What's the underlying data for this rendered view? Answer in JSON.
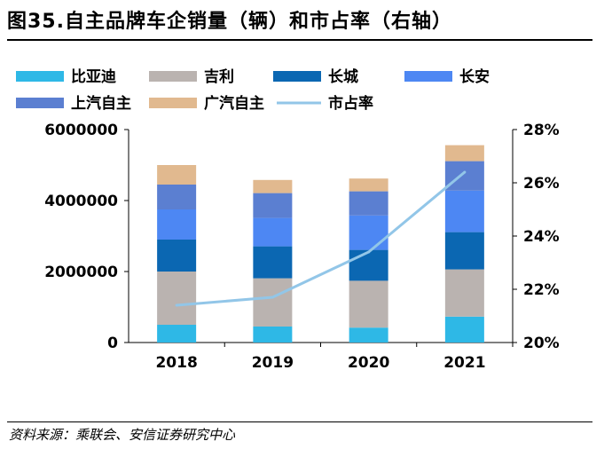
{
  "figure_title": "图35.自主品牌车企销量（辆）和市占率（右轴）",
  "source_note": "资料来源：乘联会、安信证券研究中心",
  "colors": {
    "比亚迪": "#2EB8E6",
    "吉利": "#BAB3B0",
    "长城": "#0B67B2",
    "长安": "#4D87F3",
    "上汽自主": "#5B7FD1",
    "广汽自主": "#E1B98F",
    "市占率": "#92C6E8"
  },
  "chart_data": {
    "type": "bar",
    "stacked": true,
    "categories": [
      "2018",
      "2019",
      "2020",
      "2021"
    ],
    "series": [
      {
        "name": "比亚迪",
        "type": "bar",
        "axis": "left",
        "values": [
          500000,
          450000,
          420000,
          730000
        ]
      },
      {
        "name": "吉利",
        "type": "bar",
        "axis": "left",
        "values": [
          1500000,
          1360000,
          1320000,
          1330000
        ]
      },
      {
        "name": "长城",
        "type": "bar",
        "axis": "left",
        "values": [
          900000,
          900000,
          870000,
          1050000
        ]
      },
      {
        "name": "长安",
        "type": "bar",
        "axis": "left",
        "values": [
          850000,
          800000,
          970000,
          1170000
        ]
      },
      {
        "name": "上汽自主",
        "type": "bar",
        "axis": "left",
        "values": [
          700000,
          700000,
          680000,
          830000
        ]
      },
      {
        "name": "广汽自主",
        "type": "bar",
        "axis": "left",
        "values": [
          550000,
          370000,
          360000,
          450000
        ]
      },
      {
        "name": "市占率",
        "type": "line",
        "axis": "right",
        "values": [
          21.4,
          21.7,
          23.4,
          26.4
        ]
      }
    ],
    "y_left": {
      "min": 0,
      "max": 6000000,
      "ticks": [
        "0",
        "2000000",
        "4000000",
        "6000000"
      ]
    },
    "y_right": {
      "min": 20,
      "max": 28,
      "ticks": [
        "20%",
        "22%",
        "24%",
        "26%",
        "28%"
      ]
    },
    "legend_order": [
      "比亚迪",
      "吉利",
      "长城",
      "长安",
      "上汽自主",
      "广汽自主",
      "市占率"
    ],
    "legend_placement": "top",
    "grid": false
  }
}
